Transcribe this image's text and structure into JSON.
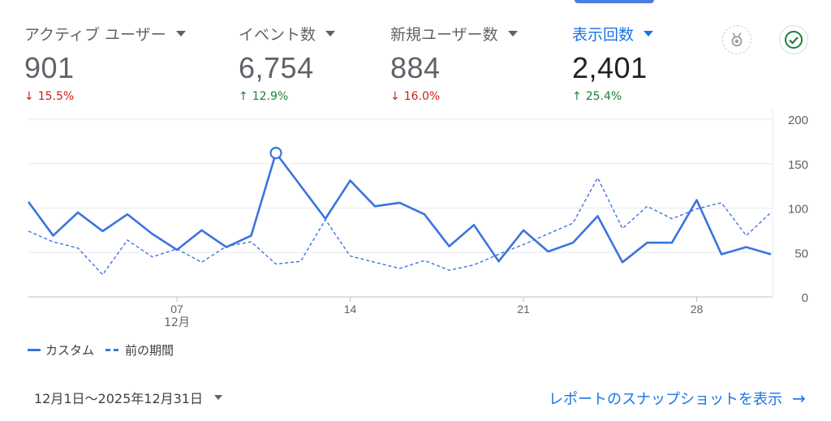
{
  "metrics": [
    {
      "label": "アクティブ ユーザー",
      "value": "901",
      "change": "15.5%",
      "direction": "down",
      "arrow": "↓"
    },
    {
      "label": "イベント数",
      "value": "6,754",
      "change": "12.9%",
      "direction": "up",
      "arrow": "↑"
    },
    {
      "label": "新規ユーザー数",
      "value": "884",
      "change": "16.0%",
      "direction": "down",
      "arrow": "↓"
    },
    {
      "label": "表示回数",
      "value": "2,401",
      "change": "25.4%",
      "direction": "up",
      "arrow": "↑"
    }
  ],
  "icons": {
    "insight": "insights-badge-icon",
    "check": "check-circle-icon"
  },
  "colors": {
    "accent": "#1a73e8",
    "series": "#3b73e0",
    "down": "#c5221f",
    "up": "#188038"
  },
  "chart_data": {
    "type": "line",
    "x": [
      1,
      2,
      3,
      4,
      5,
      6,
      7,
      8,
      9,
      10,
      11,
      12,
      13,
      14,
      15,
      16,
      17,
      18,
      19,
      20,
      21,
      22,
      23,
      24,
      25,
      26,
      27,
      28,
      29,
      30,
      31
    ],
    "x_ticks": [
      {
        "x": 7,
        "label": "07",
        "sublabel": "12月"
      },
      {
        "x": 14,
        "label": "14",
        "sublabel": ""
      },
      {
        "x": 21,
        "label": "21",
        "sublabel": ""
      },
      {
        "x": 28,
        "label": "28",
        "sublabel": ""
      }
    ],
    "y_ticks": [
      0,
      50,
      100,
      150,
      200
    ],
    "ylim": [
      0,
      200
    ],
    "y_axis_position": "right",
    "grid": true,
    "series": [
      {
        "name": "カスタム",
        "style": "solid",
        "values": [
          107,
          69,
          95,
          74,
          93,
          71,
          53,
          75,
          56,
          69,
          162,
          125,
          88,
          131,
          102,
          106,
          93,
          57,
          81,
          40,
          75,
          51,
          61,
          91,
          39,
          61,
          61,
          109,
          48,
          56,
          48
        ]
      },
      {
        "name": "前の期間",
        "style": "dashed",
        "values": [
          74,
          62,
          55,
          25,
          64,
          45,
          54,
          39,
          57,
          62,
          37,
          40,
          87,
          46,
          39,
          32,
          41,
          30,
          36,
          48,
          59,
          71,
          83,
          134,
          77,
          102,
          88,
          99,
          106,
          69,
          95
        ]
      }
    ],
    "highlight": {
      "series": 0,
      "x": 11
    },
    "legend_position": "bottom-left"
  },
  "footer": {
    "date_range": "12月1日〜2025年12月31日",
    "report_link": "レポートのスナップショットを表示",
    "report_arrow": "→"
  }
}
